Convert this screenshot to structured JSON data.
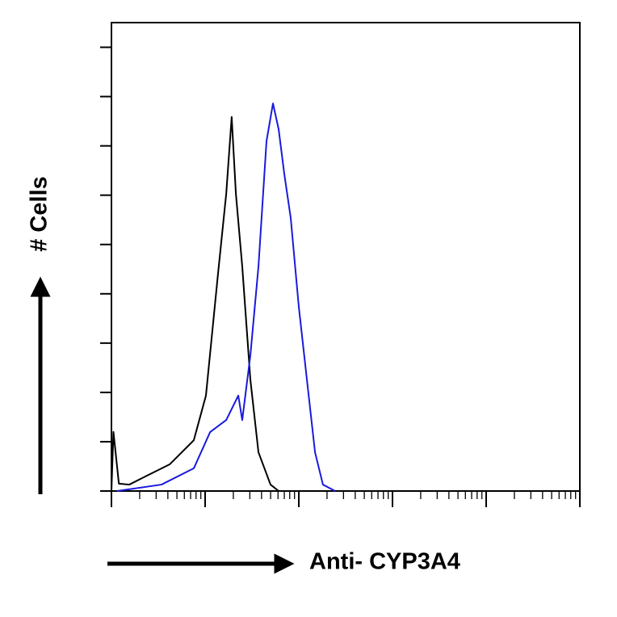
{
  "chart_data": {
    "type": "line",
    "xlabel": "Anti- CYP3A4",
    "ylabel": "# Cells",
    "xscale": "log",
    "xlim": [
      1,
      100000
    ],
    "ylim": [
      0,
      190
    ],
    "xticks": [
      1,
      2,
      3,
      4,
      5,
      6,
      7,
      8,
      9,
      10,
      20,
      30,
      40,
      50,
      60,
      70,
      80,
      90,
      100,
      200,
      300,
      400,
      500,
      600,
      700,
      800,
      900,
      1000,
      2000,
      3000,
      4000,
      5000,
      6000,
      7000,
      8000,
      9000,
      10000,
      20000,
      30000,
      40000,
      50000,
      60000,
      70000,
      80000,
      90000,
      100000
    ],
    "yticks": [
      0,
      20,
      40,
      60,
      80,
      100,
      120,
      140,
      160,
      180
    ],
    "series": [
      {
        "color": "#000000",
        "x": [
          1.0,
          1.05,
          1.2,
          1.55,
          2.3,
          4.18,
          7.57,
          10.2,
          13.7,
          16.8,
          19.2,
          21.3,
          24.9,
          30.4,
          37.1,
          49.9,
          60.9
        ],
        "values": [
          0,
          24,
          3,
          2.6,
          5.9,
          10.8,
          20.6,
          38.7,
          87.8,
          120.6,
          151.7,
          120.6,
          91.1,
          45.2,
          15.7,
          2.6,
          0
        ]
      },
      {
        "color": "#1a1adc",
        "x": [
          1.15,
          3.42,
          7.57,
          11.3,
          16.8,
          22.6,
          24.9,
          30.4,
          37.1,
          45.2,
          53.0,
          60.9,
          69.9,
          82.0,
          100,
          122,
          149,
          181,
          244
        ],
        "values": [
          0,
          2.6,
          9.2,
          23.9,
          28.8,
          38.7,
          28.8,
          55.0,
          91.1,
          141.9,
          157.2,
          146.8,
          128.8,
          110.7,
          74.7,
          45.2,
          15.7,
          2.6,
          0
        ]
      }
    ]
  }
}
